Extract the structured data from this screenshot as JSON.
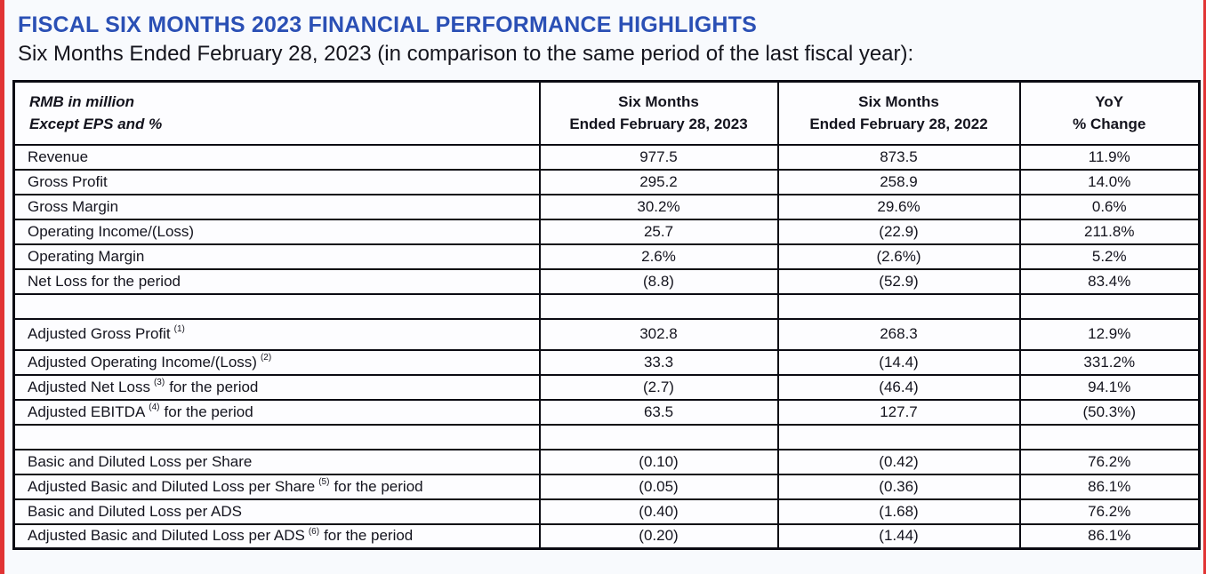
{
  "page": {
    "title": "FISCAL SIX MONTHS 2023 FINANCIAL PERFORMANCE HIGHLIGHTS",
    "subtitle": "Six Months Ended February 28, 2023 (in comparison to the same period of the last fiscal year):",
    "title_color": "#2b50b5",
    "edge_strip_color": "#e13434"
  },
  "table": {
    "header": {
      "col0": [
        "RMB in million",
        "Except EPS and %"
      ],
      "col1": [
        "Six Months",
        "Ended February 28, 2023"
      ],
      "col2": [
        "Six Months",
        "Ended February 28, 2022"
      ],
      "col3": [
        "YoY",
        "% Change"
      ]
    },
    "rows": [
      {
        "pre": "Revenue",
        "sup": "",
        "post": "",
        "v2023": "977.5",
        "v2022": "873.5",
        "yoy": "11.9%"
      },
      {
        "pre": "Gross Profit",
        "sup": "",
        "post": "",
        "v2023": "295.2",
        "v2022": "258.9",
        "yoy": "14.0%"
      },
      {
        "pre": "Gross Margin",
        "sup": "",
        "post": "",
        "v2023": "30.2%",
        "v2022": "29.6%",
        "yoy": "0.6%"
      },
      {
        "pre": "Operating Income/(Loss)",
        "sup": "",
        "post": "",
        "v2023": "25.7",
        "v2022": "(22.9)",
        "yoy": "211.8%"
      },
      {
        "pre": "Operating Margin",
        "sup": "",
        "post": "",
        "v2023": "2.6%",
        "v2022": "(2.6%)",
        "yoy": "5.2%"
      },
      {
        "pre": "Net Loss for the period",
        "sup": "",
        "post": "",
        "v2023": "(8.8)",
        "v2022": "(52.9)",
        "yoy": "83.4%"
      },
      {
        "spacer": true,
        "pre": "",
        "sup": "",
        "post": "",
        "v2023": "",
        "v2022": "",
        "yoy": ""
      },
      {
        "pre": "Adjusted Gross Profit",
        "sup": "(1)",
        "post": "",
        "v2023": "302.8",
        "v2022": "268.3",
        "yoy": "12.9%",
        "tall": true
      },
      {
        "pre": "Adjusted Operating Income/(Loss)",
        "sup": "(2)",
        "post": "",
        "v2023": "33.3",
        "v2022": "(14.4)",
        "yoy": "331.2%"
      },
      {
        "pre": "Adjusted Net Loss",
        "sup": "(3)",
        "post": "for the period",
        "v2023": "(2.7)",
        "v2022": "(46.4)",
        "yoy": "94.1%"
      },
      {
        "pre": "Adjusted EBITDA",
        "sup": "(4)",
        "post": "for the period",
        "v2023": "63.5",
        "v2022": "127.7",
        "yoy": "(50.3%)"
      },
      {
        "spacer": true,
        "pre": "",
        "sup": "",
        "post": "",
        "v2023": "",
        "v2022": "",
        "yoy": ""
      },
      {
        "pre": "Basic and Diluted Loss per Share",
        "sup": "",
        "post": "",
        "v2023": "(0.10)",
        "v2022": "(0.42)",
        "yoy": "76.2%"
      },
      {
        "pre": "Adjusted Basic and Diluted Loss per Share",
        "sup": "(5)",
        "post": "for the period",
        "v2023": "(0.05)",
        "v2022": "(0.36)",
        "yoy": "86.1%"
      },
      {
        "pre": "Basic and Diluted Loss per ADS",
        "sup": "",
        "post": "",
        "v2023": "(0.40)",
        "v2022": "(1.68)",
        "yoy": "76.2%"
      },
      {
        "pre": "Adjusted Basic and Diluted Loss per ADS",
        "sup": "(6)",
        "post": "for the period",
        "v2023": "(0.20)",
        "v2022": "(1.44)",
        "yoy": "86.1%"
      }
    ]
  }
}
